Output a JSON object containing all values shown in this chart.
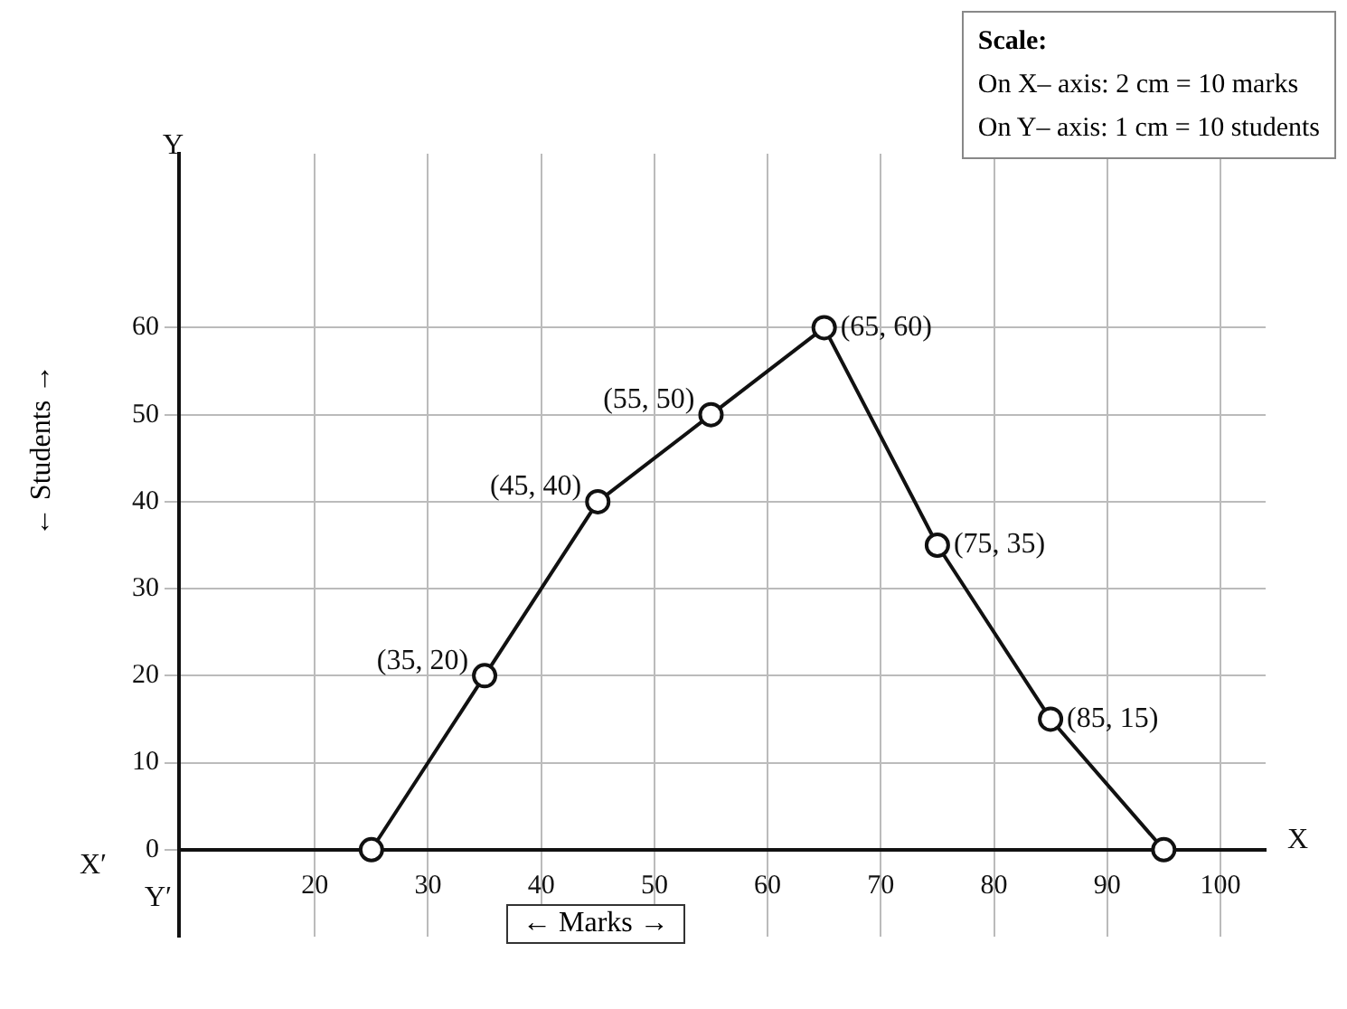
{
  "chart_data": {
    "type": "line",
    "xlabel": "← Marks →",
    "ylabel": "← Students →",
    "x": [
      25,
      35,
      45,
      55,
      65,
      75,
      85,
      95
    ],
    "values": [
      0,
      20,
      40,
      50,
      60,
      35,
      15,
      0
    ],
    "color": "#111111",
    "marker": "circle",
    "line_style": "solid",
    "grid": true,
    "xlim": [
      8,
      104
    ],
    "xticks": [
      20,
      30,
      40,
      50,
      60,
      70,
      80,
      90,
      100
    ],
    "ylim": [
      -10,
      80
    ],
    "yticks": [
      0,
      10,
      20,
      30,
      40,
      50,
      60
    ],
    "annotations": [
      {
        "text": "(35, 20)",
        "x": 35,
        "y": 20
      },
      {
        "text": "(45, 40)",
        "x": 45,
        "y": 40
      },
      {
        "text": "(55, 50)",
        "x": 55,
        "y": 50
      },
      {
        "text": "(65, 60)",
        "x": 65,
        "y": 60
      },
      {
        "text": "(75, 35)",
        "x": 75,
        "y": 35
      },
      {
        "text": "(85, 15)",
        "x": 85,
        "y": 15
      },
      "Scale:",
      "On X– axis: 2 cm = 10 marks",
      "On Y– axis: 1 cm = 10 students",
      "X",
      "X′",
      "Y",
      "Y′"
    ]
  }
}
